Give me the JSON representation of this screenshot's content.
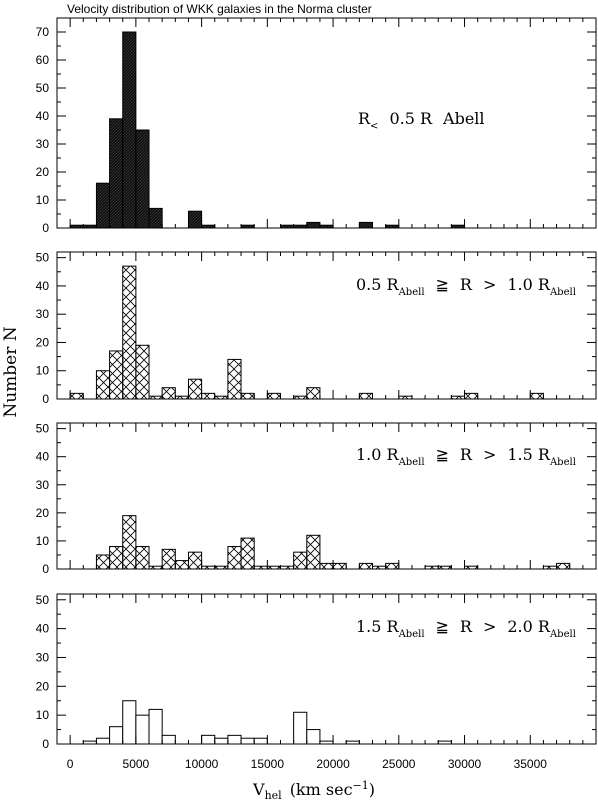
{
  "figure": {
    "title": "Velocity distribution of WKK galaxies in the Norma cluster",
    "xlabel_main": "V",
    "xlabel_sub": "hel",
    "xlabel_rest": "(km sec",
    "xlabel_sup": "−1",
    "xlabel_close": ")",
    "ylabel": "Number N"
  },
  "chart_data": [
    {
      "type": "bar",
      "label_parts": [
        "R",
        "<",
        "0.5 R",
        "Abell",
        "",
        "",
        ""
      ],
      "fill": "solid",
      "bin_width": 1000,
      "xlim": [
        -1000,
        40000
      ],
      "x_ticks": [
        0,
        5000,
        10000,
        15000,
        20000,
        25000,
        30000,
        35000
      ],
      "x_tick_labels": [
        "",
        "",
        "",
        "",
        "",
        "",
        "",
        ""
      ],
      "ylim": [
        0,
        75
      ],
      "y_ticks": [
        0,
        10,
        20,
        30,
        40,
        50,
        60,
        70
      ],
      "y_tick_labels": [
        "0",
        "10",
        "20",
        "30",
        "40",
        "50",
        "60",
        "70"
      ],
      "bins": [
        {
          "x0": 0,
          "value": 1
        },
        {
          "x0": 1000,
          "value": 1
        },
        {
          "x0": 2000,
          "value": 16
        },
        {
          "x0": 3000,
          "value": 39
        },
        {
          "x0": 4000,
          "value": 70
        },
        {
          "x0": 5000,
          "value": 35
        },
        {
          "x0": 6000,
          "value": 7
        },
        {
          "x0": 9000,
          "value": 6
        },
        {
          "x0": 10000,
          "value": 1
        },
        {
          "x0": 13000,
          "value": 1
        },
        {
          "x0": 16000,
          "value": 1
        },
        {
          "x0": 17000,
          "value": 1
        },
        {
          "x0": 18000,
          "value": 2
        },
        {
          "x0": 19000,
          "value": 1
        },
        {
          "x0": 22000,
          "value": 2
        },
        {
          "x0": 24000,
          "value": 1
        },
        {
          "x0": 29000,
          "value": 1
        }
      ]
    },
    {
      "type": "bar",
      "label_parts": [
        "0.5 R",
        "Abell",
        "≧",
        "R",
        ">",
        "1.0 R",
        "Abell"
      ],
      "fill": "crosshatch",
      "bin_width": 1000,
      "xlim": [
        -1000,
        40000
      ],
      "x_ticks": [
        0,
        5000,
        10000,
        15000,
        20000,
        25000,
        30000,
        35000
      ],
      "x_tick_labels": [
        "",
        "",
        "",
        "",
        "",
        "",
        "",
        ""
      ],
      "ylim": [
        0,
        52
      ],
      "y_ticks": [
        0,
        10,
        20,
        30,
        40,
        50
      ],
      "y_tick_labels": [
        "0",
        "10",
        "20",
        "30",
        "40",
        "50"
      ],
      "bins": [
        {
          "x0": 0,
          "value": 2
        },
        {
          "x0": 2000,
          "value": 10
        },
        {
          "x0": 3000,
          "value": 17
        },
        {
          "x0": 4000,
          "value": 47
        },
        {
          "x0": 5000,
          "value": 19
        },
        {
          "x0": 6000,
          "value": 1
        },
        {
          "x0": 7000,
          "value": 4
        },
        {
          "x0": 8000,
          "value": 1
        },
        {
          "x0": 9000,
          "value": 7
        },
        {
          "x0": 10000,
          "value": 2
        },
        {
          "x0": 11000,
          "value": 1
        },
        {
          "x0": 12000,
          "value": 14
        },
        {
          "x0": 13000,
          "value": 2
        },
        {
          "x0": 15000,
          "value": 2
        },
        {
          "x0": 17000,
          "value": 1
        },
        {
          "x0": 18000,
          "value": 4
        },
        {
          "x0": 22000,
          "value": 2
        },
        {
          "x0": 25000,
          "value": 1
        },
        {
          "x0": 29000,
          "value": 1
        },
        {
          "x0": 30000,
          "value": 2
        },
        {
          "x0": 35000,
          "value": 2
        }
      ]
    },
    {
      "type": "bar",
      "label_parts": [
        "1.0 R",
        "Abell",
        "≧",
        "R",
        ">",
        "1.5 R",
        "Abell"
      ],
      "fill": "crosshatch",
      "bin_width": 1000,
      "xlim": [
        -1000,
        40000
      ],
      "x_ticks": [
        0,
        5000,
        10000,
        15000,
        20000,
        25000,
        30000,
        35000
      ],
      "x_tick_labels": [
        "",
        "",
        "",
        "",
        "",
        "",
        "",
        ""
      ],
      "ylim": [
        0,
        52
      ],
      "y_ticks": [
        0,
        10,
        20,
        30,
        40,
        50
      ],
      "y_tick_labels": [
        "0",
        "10",
        "20",
        "30",
        "40",
        "50"
      ],
      "bins": [
        {
          "x0": 2000,
          "value": 5
        },
        {
          "x0": 3000,
          "value": 8
        },
        {
          "x0": 4000,
          "value": 19
        },
        {
          "x0": 5000,
          "value": 8
        },
        {
          "x0": 6000,
          "value": 1
        },
        {
          "x0": 7000,
          "value": 7
        },
        {
          "x0": 8000,
          "value": 3
        },
        {
          "x0": 9000,
          "value": 6
        },
        {
          "x0": 10000,
          "value": 1
        },
        {
          "x0": 11000,
          "value": 1
        },
        {
          "x0": 12000,
          "value": 8
        },
        {
          "x0": 13000,
          "value": 11
        },
        {
          "x0": 14000,
          "value": 1
        },
        {
          "x0": 15000,
          "value": 1
        },
        {
          "x0": 16000,
          "value": 1
        },
        {
          "x0": 17000,
          "value": 6
        },
        {
          "x0": 18000,
          "value": 12
        },
        {
          "x0": 19000,
          "value": 2
        },
        {
          "x0": 20000,
          "value": 2
        },
        {
          "x0": 22000,
          "value": 2
        },
        {
          "x0": 23000,
          "value": 1
        },
        {
          "x0": 24000,
          "value": 2
        },
        {
          "x0": 27000,
          "value": 1
        },
        {
          "x0": 28000,
          "value": 1
        },
        {
          "x0": 30000,
          "value": 1
        },
        {
          "x0": 36000,
          "value": 1
        },
        {
          "x0": 37000,
          "value": 2
        },
        {
          "x0": 40000,
          "value": 2
        }
      ]
    },
    {
      "type": "bar",
      "label_parts": [
        "1.5 R",
        "Abell",
        "≧",
        "R",
        ">",
        "2.0 R",
        "Abell"
      ],
      "fill": "none",
      "bin_width": 1000,
      "xlim": [
        -1000,
        40000
      ],
      "x_ticks": [
        0,
        5000,
        10000,
        15000,
        20000,
        25000,
        30000,
        35000
      ],
      "x_tick_labels": [
        "0",
        "5000",
        "10000",
        "15000",
        "20000",
        "25000",
        "30000",
        "35000"
      ],
      "ylim": [
        0,
        52
      ],
      "y_ticks": [
        0,
        10,
        20,
        30,
        40,
        50
      ],
      "y_tick_labels": [
        "0",
        "10",
        "20",
        "30",
        "40",
        "50"
      ],
      "bins": [
        {
          "x0": 1000,
          "value": 1
        },
        {
          "x0": 2000,
          "value": 2
        },
        {
          "x0": 3000,
          "value": 6
        },
        {
          "x0": 4000,
          "value": 15
        },
        {
          "x0": 5000,
          "value": 10
        },
        {
          "x0": 6000,
          "value": 12
        },
        {
          "x0": 7000,
          "value": 3
        },
        {
          "x0": 10000,
          "value": 3
        },
        {
          "x0": 11000,
          "value": 2
        },
        {
          "x0": 12000,
          "value": 3
        },
        {
          "x0": 13000,
          "value": 2
        },
        {
          "x0": 14000,
          "value": 2
        },
        {
          "x0": 17000,
          "value": 11
        },
        {
          "x0": 18000,
          "value": 5
        },
        {
          "x0": 19000,
          "value": 1
        },
        {
          "x0": 21000,
          "value": 1
        },
        {
          "x0": 28000,
          "value": 1
        }
      ]
    }
  ]
}
